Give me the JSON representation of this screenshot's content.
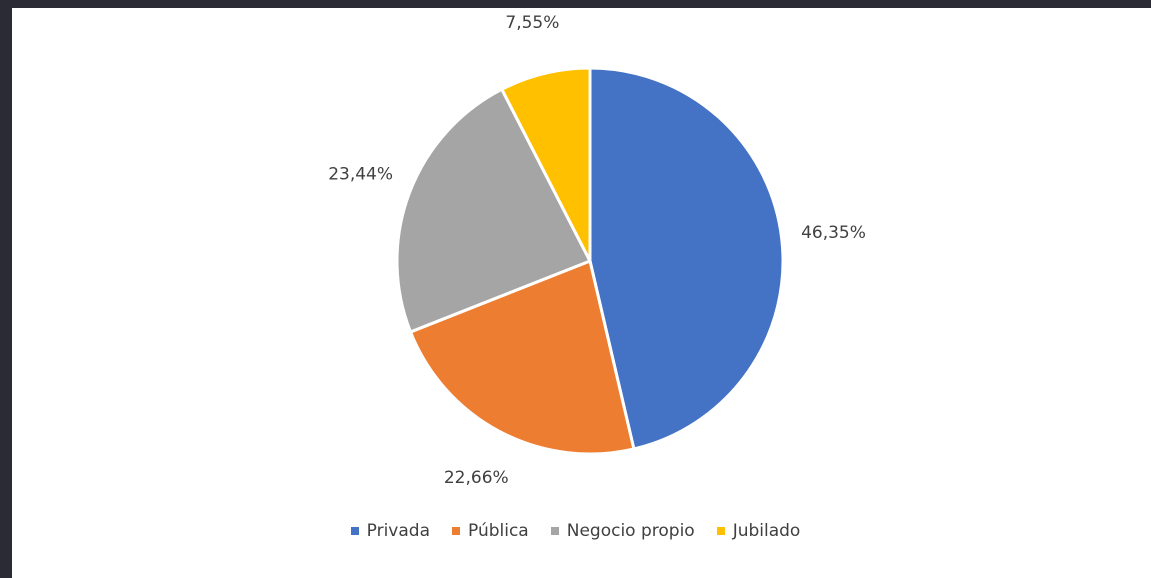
{
  "chart_data": {
    "type": "pie",
    "categories": [
      "Privada",
      "Pública",
      "Negocio propio",
      "Jubilado"
    ],
    "values": [
      46.35,
      22.66,
      23.44,
      7.55
    ],
    "value_labels": [
      "46,35%",
      "22,66%",
      "23,44%",
      "7,55%"
    ],
    "colors": [
      "#4472c4",
      "#ed7d31",
      "#a5a5a5",
      "#ffc000"
    ],
    "legend": "bottom"
  }
}
